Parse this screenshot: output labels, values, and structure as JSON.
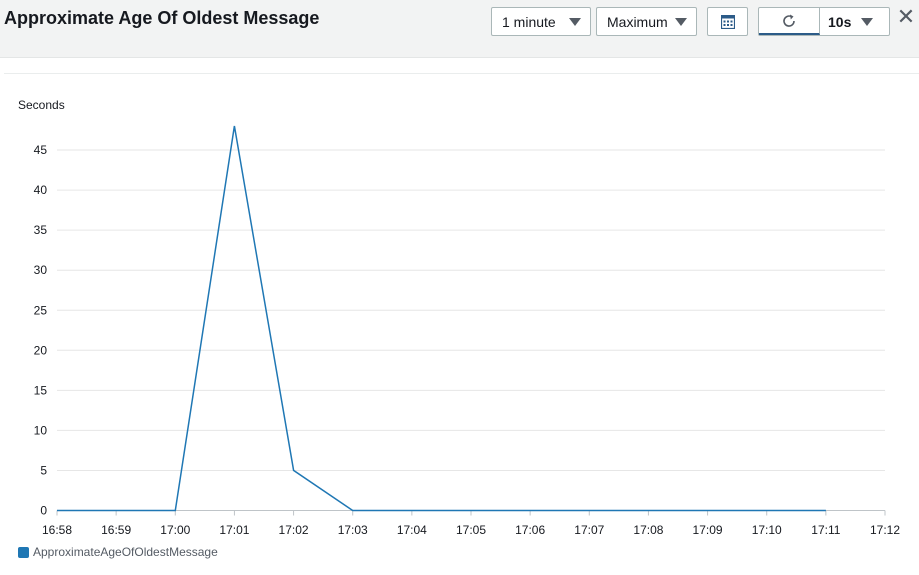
{
  "header": {
    "title": "Approximate Age Of Oldest Message",
    "period": "1 minute",
    "statistic": "Maximum",
    "refresh_interval": "10s"
  },
  "icons": {
    "calendar": "calendar-icon",
    "refresh": "refresh-icon",
    "close": "close-icon"
  },
  "colors": {
    "series": "#1f77b4",
    "header_bg": "#f2f3f3"
  },
  "chart_data": {
    "type": "line",
    "ylabel": "Seconds",
    "xlabel": "",
    "x_ticks": [
      "16:58",
      "16:59",
      "17:00",
      "17:01",
      "17:02",
      "17:03",
      "17:04",
      "17:05",
      "17:06",
      "17:07",
      "17:08",
      "17:09",
      "17:10",
      "17:11",
      "17:12"
    ],
    "y_ticks": [
      0,
      5,
      10,
      15,
      20,
      25,
      30,
      35,
      40,
      45
    ],
    "ylim": [
      0,
      50
    ],
    "grid": true,
    "legend_position": "bottom-left",
    "series": [
      {
        "name": "ApproximateAgeOfOldestMessage",
        "color": "#1f77b4",
        "x": [
          "16:58",
          "16:59",
          "17:00",
          "17:01",
          "17:02",
          "17:03",
          "17:04",
          "17:05",
          "17:06",
          "17:07",
          "17:08",
          "17:09",
          "17:10",
          "17:11"
        ],
        "values": [
          0,
          0,
          0,
          48,
          5,
          0,
          0,
          0,
          0,
          0,
          0,
          0,
          0,
          0
        ]
      }
    ]
  }
}
